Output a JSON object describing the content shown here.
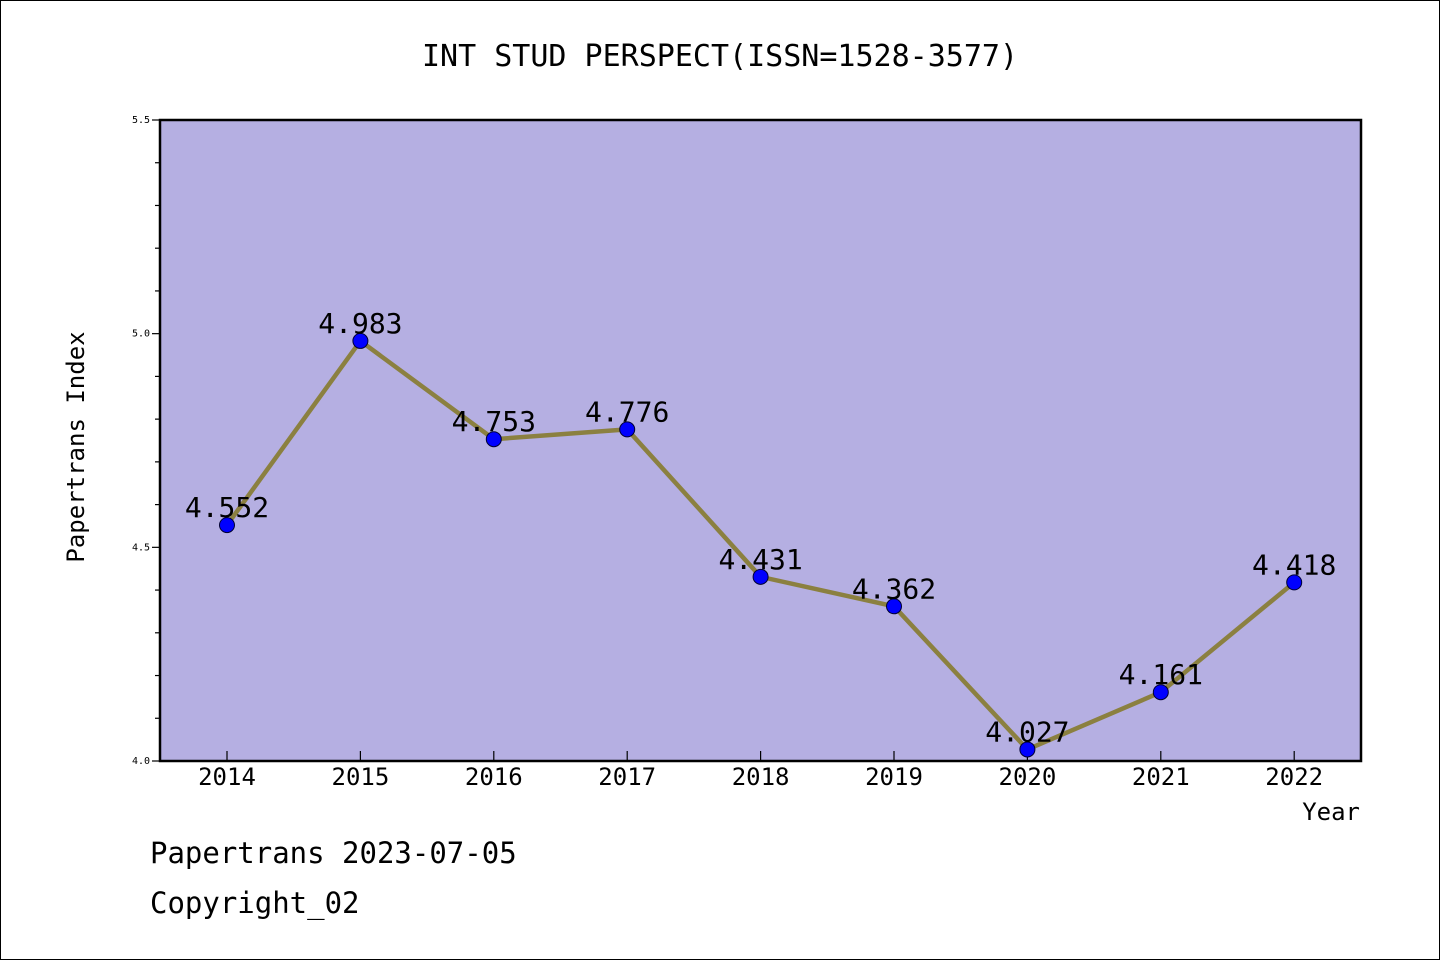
{
  "chart_data": {
    "type": "line",
    "title": "INT STUD PERSPECT(ISSN=1528-3577)",
    "xlabel": "Year",
    "ylabel": "Papertrans Index",
    "categories": [
      "2014",
      "2015",
      "2016",
      "2017",
      "2018",
      "2019",
      "2020",
      "2021",
      "2022"
    ],
    "series": [
      {
        "values": [
          4.552,
          4.983,
          4.753,
          4.776,
          4.431,
          4.362,
          4.027,
          4.161,
          4.418
        ],
        "labels": [
          "4.552",
          "4.983",
          "4.753",
          "4.776",
          "4.431",
          "4.362",
          "4.027",
          "4.161",
          "4.418"
        ]
      }
    ],
    "ylim": [
      4.0,
      5.5
    ],
    "yticks": [
      "4.0",
      "4.5",
      "5.0",
      "5.5"
    ],
    "grid": false,
    "colors": {
      "plot_background": "#b5afe2",
      "line": "#8b8040",
      "marker": "#0000ff"
    }
  },
  "footer": {
    "date_line": "Papertrans 2023-07-05",
    "copyright": "Copyright_02"
  }
}
